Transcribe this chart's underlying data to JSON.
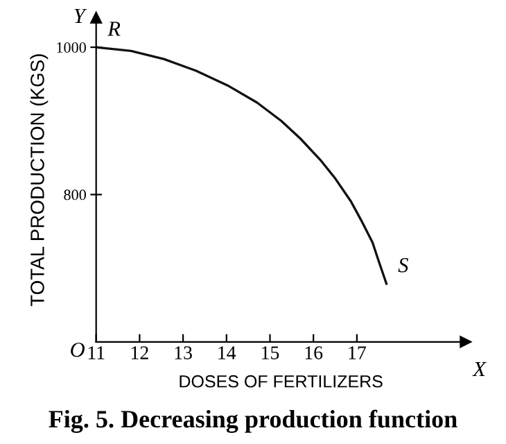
{
  "chart_data": {
    "type": "line",
    "title": "Fig. 5. Decreasing production function",
    "xlabel": "DOSES OF FERTILIZERS",
    "ylabel": "TOTAL PRODUCTION (KGS)",
    "x": [
      11,
      11.8,
      12.56,
      13.3,
      14.06,
      14.7,
      15.26,
      15.7,
      16.16,
      16.5,
      16.86,
      17.1,
      17.36,
      17.5,
      17.68
    ],
    "series": [
      {
        "color": "#111111",
        "values": [
          1000,
          995,
          984,
          968,
          947,
          925,
          900,
          876,
          847,
          822,
          791,
          765,
          735,
          710,
          679
        ]
      }
    ],
    "xlim": [
      11,
      19.5
    ],
    "xticks": [
      11,
      12,
      13,
      14,
      15,
      16,
      17
    ],
    "ylim": [
      600,
      1040
    ],
    "yticks": [
      800,
      1000
    ],
    "annotations": [
      {
        "text": "R",
        "x": 11,
        "y": 1000
      },
      {
        "text": "S",
        "x": 17.68,
        "y": 679
      },
      "O",
      "X",
      "Y"
    ],
    "grid": false,
    "legend": false,
    "marker": "none",
    "line_style": "solid"
  }
}
